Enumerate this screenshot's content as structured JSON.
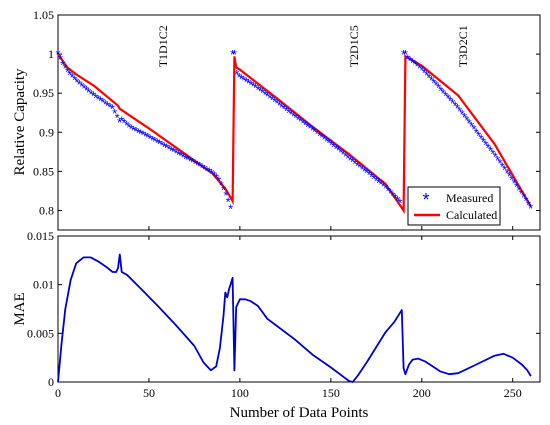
{
  "chart_data": [
    {
      "type": "line",
      "ylabel": "Relative Capacity",
      "xlim": [
        0,
        265
      ],
      "ylim": [
        0.775,
        1.05
      ],
      "yticks": [
        "0.8",
        "0.85",
        "0.9",
        "0.95",
        "1",
        "1.05"
      ],
      "grid": false,
      "legend_position": "bottom-right",
      "annotations": [
        {
          "text": "T1D1C2",
          "x": 60,
          "y": 1.01
        },
        {
          "text": "T2D1C5",
          "x": 165,
          "y": 1.01
        },
        {
          "text": "T3D2C1",
          "x": 225,
          "y": 1.01
        }
      ],
      "series": [
        {
          "name": "Measured",
          "color": "#0000ff",
          "marker": "*",
          "x": [
            0,
            3,
            6,
            10,
            15,
            20,
            25,
            30,
            34,
            35,
            40,
            50,
            60,
            70,
            80,
            85,
            88,
            92,
            95,
            96,
            97,
            98,
            100,
            110,
            120,
            130,
            140,
            150,
            160,
            170,
            180,
            189,
            190,
            191,
            192,
            200,
            210,
            220,
            230,
            240,
            250,
            260
          ],
          "y": [
            1.0,
            0.985,
            0.975,
            0.965,
            0.955,
            0.946,
            0.938,
            0.93,
            0.912,
            0.915,
            0.905,
            0.893,
            0.88,
            0.867,
            0.854,
            0.847,
            0.84,
            0.822,
            0.802,
            0.98,
            1.0,
            0.975,
            0.97,
            0.955,
            0.938,
            0.92,
            0.903,
            0.885,
            0.866,
            0.848,
            0.829,
            0.808,
            0.81,
            1.0,
            0.995,
            0.98,
            0.955,
            0.93,
            0.9,
            0.87,
            0.838,
            0.803
          ]
        },
        {
          "name": "Calculated",
          "color": "#ff0000",
          "marker": "none",
          "x": [
            0,
            5,
            10,
            20,
            33,
            34,
            50,
            70,
            85,
            92,
            96,
            97,
            98,
            100,
            120,
            140,
            160,
            180,
            190,
            191,
            200,
            220,
            240,
            260
          ],
          "y": [
            1.0,
            0.983,
            0.974,
            0.959,
            0.934,
            0.93,
            0.905,
            0.872,
            0.847,
            0.828,
            0.812,
            0.997,
            0.983,
            0.98,
            0.944,
            0.907,
            0.872,
            0.834,
            0.8,
            0.997,
            0.985,
            0.947,
            0.885,
            0.805
          ]
        }
      ]
    },
    {
      "type": "line",
      "xlabel": "Number of Data Points",
      "ylabel": "MAE",
      "xlim": [
        0,
        265
      ],
      "ylim": [
        0,
        0.015
      ],
      "xticks": [
        "0",
        "50",
        "100",
        "150",
        "200",
        "250"
      ],
      "yticks": [
        "0",
        "0.005",
        "0.01",
        "0.015"
      ],
      "grid": false,
      "series": [
        {
          "color": "#0000cc",
          "x": [
            0,
            2,
            4,
            7,
            10,
            14,
            18,
            22,
            26,
            30,
            32,
            33,
            34,
            35,
            38,
            45,
            55,
            65,
            75,
            80,
            84,
            87,
            89,
            91,
            92,
            93,
            94,
            95,
            96,
            97,
            98,
            100,
            103,
            106,
            110,
            115,
            120,
            130,
            140,
            150,
            155,
            160,
            162,
            165,
            170,
            175,
            180,
            185,
            189,
            190,
            191,
            193,
            195,
            198,
            202,
            206,
            210,
            215,
            220,
            230,
            240,
            245,
            250,
            255,
            258,
            260
          ],
          "y": [
            0,
            0.004,
            0.0075,
            0.0105,
            0.0122,
            0.0128,
            0.0128,
            0.0124,
            0.0119,
            0.0113,
            0.0113,
            0.0117,
            0.0131,
            0.0113,
            0.011,
            0.0097,
            0.0078,
            0.0058,
            0.0037,
            0.002,
            0.0012,
            0.0016,
            0.0035,
            0.0068,
            0.0092,
            0.0087,
            0.0095,
            0.0101,
            0.0107,
            0.0012,
            0.0077,
            0.0085,
            0.0085,
            0.0083,
            0.0078,
            0.0065,
            0.0058,
            0.0044,
            0.0028,
            0.0015,
            0.0008,
            0.0001,
            0.0,
            0.0007,
            0.0021,
            0.0036,
            0.0051,
            0.0062,
            0.0074,
            0.0014,
            0.0008,
            0.0018,
            0.0023,
            0.0024,
            0.0021,
            0.0016,
            0.0011,
            0.0008,
            0.0009,
            0.0018,
            0.0027,
            0.0029,
            0.0025,
            0.0018,
            0.0012,
            0.0006
          ]
        }
      ]
    }
  ]
}
